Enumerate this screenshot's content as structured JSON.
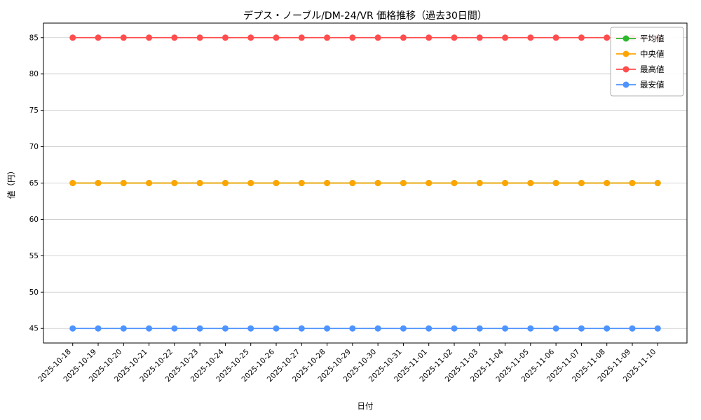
{
  "chart_data": {
    "type": "line",
    "title": "デプス・ノーブル/DM-24/VR 価格推移（過去30日間）",
    "xlabel": "日付",
    "ylabel": "値（円）",
    "x": [
      "2025-10-18",
      "2025-10-19",
      "2025-10-20",
      "2025-10-21",
      "2025-10-22",
      "2025-10-23",
      "2025-10-24",
      "2025-10-25",
      "2025-10-26",
      "2025-10-27",
      "2025-10-28",
      "2025-10-29",
      "2025-10-30",
      "2025-10-31",
      "2025-11-01",
      "2025-11-02",
      "2025-11-03",
      "2025-11-04",
      "2025-11-05",
      "2025-11-06",
      "2025-11-07",
      "2025-11-08",
      "2025-11-09",
      "2025-11-10"
    ],
    "ylim": [
      43,
      87
    ],
    "yticks": [
      45,
      50,
      55,
      60,
      65,
      70,
      75,
      80,
      85
    ],
    "grid": true,
    "legend_position": "upper right",
    "series": [
      {
        "key": "average",
        "name": "平均値",
        "color": "#2eb82e",
        "values": [
          65,
          65,
          65,
          65,
          65,
          65,
          65,
          65,
          65,
          65,
          65,
          65,
          65,
          65,
          65,
          65,
          65,
          65,
          65,
          65,
          65,
          65,
          65,
          65
        ]
      },
      {
        "key": "median",
        "name": "中央値",
        "color": "#ffa502",
        "values": [
          65,
          65,
          65,
          65,
          65,
          65,
          65,
          65,
          65,
          65,
          65,
          65,
          65,
          65,
          65,
          65,
          65,
          65,
          65,
          65,
          65,
          65,
          65,
          65
        ]
      },
      {
        "key": "highest",
        "name": "最高値",
        "color": "#ff4d4d",
        "values": [
          85,
          85,
          85,
          85,
          85,
          85,
          85,
          85,
          85,
          85,
          85,
          85,
          85,
          85,
          85,
          85,
          85,
          85,
          85,
          85,
          85,
          85,
          85,
          85
        ]
      },
      {
        "key": "lowest",
        "name": "最安値",
        "color": "#4d94ff",
        "values": [
          45,
          45,
          45,
          45,
          45,
          45,
          45,
          45,
          45,
          45,
          45,
          45,
          45,
          45,
          45,
          45,
          45,
          45,
          45,
          45,
          45,
          45,
          45,
          45
        ]
      }
    ]
  }
}
